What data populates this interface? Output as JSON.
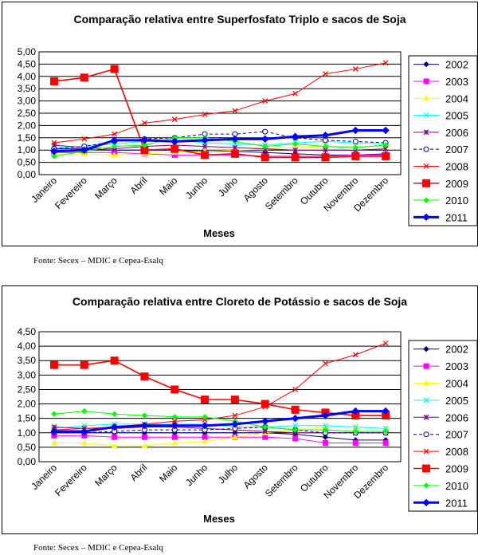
{
  "chart_data": [
    {
      "type": "line",
      "title": "Comparação relativa entre Superfosfato Triplo e sacos de Soja",
      "xlabel": "Meses",
      "ylabel": "",
      "ylim": [
        0,
        5
      ],
      "yticks": [
        "0,00",
        "0,50",
        "1,00",
        "1,50",
        "2,00",
        "2,50",
        "3,00",
        "3,50",
        "4,00",
        "4,50",
        "5,00"
      ],
      "categories": [
        "Janeiro",
        "Fevereiro",
        "Março",
        "Abril",
        "Maio",
        "Junho",
        "Julho",
        "Agosto",
        "Setembro",
        "Outubro",
        "Novembro",
        "Dezembro"
      ],
      "grid": true,
      "legend": "right",
      "series": [
        {
          "name": "2002",
          "color": "#000080",
          "marker": "diamond",
          "dash": "",
          "width": 1,
          "values": [
            1.05,
            1.05,
            1.0,
            1.0,
            1.0,
            0.95,
            0.95,
            0.9,
            0.85,
            0.8,
            0.8,
            0.85
          ]
        },
        {
          "name": "2003",
          "color": "#ff00ff",
          "marker": "square",
          "dash": "",
          "width": 1,
          "values": [
            0.9,
            0.9,
            0.9,
            0.85,
            0.8,
            0.8,
            0.8,
            0.75,
            0.75,
            0.75,
            0.8,
            0.8
          ]
        },
        {
          "name": "2004",
          "color": "#ffff00",
          "marker": "triangle",
          "dash": "",
          "width": 1,
          "values": [
            0.85,
            0.85,
            0.8,
            0.85,
            0.9,
            0.95,
            1.0,
            1.05,
            1.1,
            1.15,
            1.15,
            1.15
          ]
        },
        {
          "name": "2005",
          "color": "#00ffff",
          "marker": "x",
          "dash": "",
          "width": 1,
          "values": [
            1.1,
            1.15,
            1.25,
            1.35,
            1.4,
            1.3,
            1.25,
            1.2,
            1.3,
            1.35,
            1.3,
            1.25
          ]
        },
        {
          "name": "2006",
          "color": "#800080",
          "marker": "star",
          "dash": "",
          "width": 1,
          "values": [
            1.2,
            1.1,
            1.05,
            1.15,
            1.2,
            1.15,
            1.1,
            1.05,
            1.0,
            1.0,
            1.0,
            1.05
          ]
        },
        {
          "name": "2007",
          "color": "#000080",
          "marker": "circle",
          "dash": "4,3",
          "width": 1,
          "values": [
            1.05,
            1.15,
            1.35,
            1.45,
            1.5,
            1.65,
            1.65,
            1.75,
            1.5,
            1.4,
            1.35,
            1.3
          ]
        },
        {
          "name": "2008",
          "color": "#ff0000",
          "marker": "x",
          "dash": "",
          "width": 1,
          "values": [
            1.3,
            1.45,
            1.65,
            2.1,
            2.25,
            2.45,
            2.6,
            3.0,
            3.3,
            4.1,
            4.3,
            4.55
          ]
        },
        {
          "name": "2009",
          "color": "#ff0000",
          "marker": "square",
          "dash": "",
          "width": 1.6,
          "values": [
            3.8,
            3.95,
            4.3,
            1.0,
            1.05,
            0.8,
            0.85,
            0.7,
            0.7,
            0.7,
            0.75,
            0.75
          ]
        },
        {
          "name": "2010",
          "color": "#00ff00",
          "marker": "diamond",
          "dash": "",
          "width": 1,
          "values": [
            0.75,
            0.95,
            1.15,
            1.2,
            1.5,
            1.5,
            1.35,
            1.15,
            1.25,
            1.15,
            1.1,
            1.2
          ]
        },
        {
          "name": "2011",
          "color": "#0000ff",
          "marker": "diamond",
          "dash": "",
          "width": 3,
          "values": [
            0.95,
            1.0,
            1.4,
            1.4,
            1.35,
            1.4,
            1.45,
            1.45,
            1.55,
            1.6,
            1.8,
            1.8
          ]
        }
      ]
    },
    {
      "type": "line",
      "title": "Comparação relativa entre Cloreto de Potássio e sacos de Soja",
      "xlabel": "Meses",
      "ylabel": "",
      "ylim": [
        0,
        4.5
      ],
      "yticks": [
        "0,00",
        "0,50",
        "1,00",
        "1,50",
        "2,00",
        "2,50",
        "3,00",
        "3,50",
        "4,00",
        "4,50"
      ],
      "categories": [
        "Janeiro",
        "Fevereiro",
        "Março",
        "Abril",
        "Maio",
        "Junho",
        "Julho",
        "Agosto",
        "Setembro",
        "Outubro",
        "Novembro",
        "Dezembro"
      ],
      "grid": true,
      "legend": "right",
      "series": [
        {
          "name": "2002",
          "color": "#000080",
          "marker": "diamond",
          "dash": "",
          "width": 1,
          "values": [
            1.0,
            1.0,
            1.0,
            1.0,
            1.0,
            1.0,
            1.0,
            1.0,
            0.95,
            0.85,
            0.75,
            0.75
          ]
        },
        {
          "name": "2003",
          "color": "#ff00ff",
          "marker": "square",
          "dash": "",
          "width": 1,
          "values": [
            0.9,
            0.9,
            0.85,
            0.85,
            0.85,
            0.85,
            0.85,
            0.85,
            0.8,
            0.65,
            0.65,
            0.65
          ]
        },
        {
          "name": "2004",
          "color": "#ffff00",
          "marker": "triangle",
          "dash": "",
          "width": 1,
          "values": [
            0.65,
            0.65,
            0.55,
            0.55,
            0.65,
            0.7,
            0.85,
            1.0,
            1.1,
            1.2,
            1.2,
            1.15
          ]
        },
        {
          "name": "2005",
          "color": "#00ffff",
          "marker": "x",
          "dash": "",
          "width": 1,
          "values": [
            1.15,
            1.25,
            1.3,
            1.3,
            1.3,
            1.3,
            1.2,
            1.2,
            1.25,
            1.25,
            1.2,
            1.15
          ]
        },
        {
          "name": "2006",
          "color": "#800080",
          "marker": "star",
          "dash": "",
          "width": 1,
          "values": [
            1.2,
            1.15,
            1.15,
            1.2,
            1.2,
            1.15,
            1.1,
            1.05,
            1.0,
            1.0,
            1.0,
            1.0
          ]
        },
        {
          "name": "2007",
          "color": "#000080",
          "marker": "circle",
          "dash": "4,3",
          "width": 1,
          "values": [
            1.0,
            1.0,
            1.05,
            1.1,
            1.1,
            1.1,
            1.15,
            1.2,
            1.1,
            1.0,
            1.0,
            1.0
          ]
        },
        {
          "name": "2008",
          "color": "#ff0000",
          "marker": "x",
          "dash": "",
          "width": 1,
          "values": [
            1.1,
            1.15,
            1.2,
            1.3,
            1.4,
            1.45,
            1.6,
            1.9,
            2.5,
            3.4,
            3.7,
            4.1
          ]
        },
        {
          "name": "2009",
          "color": "#ff0000",
          "marker": "square",
          "dash": "",
          "width": 1.6,
          "values": [
            3.35,
            3.35,
            3.5,
            2.95,
            2.5,
            2.15,
            2.15,
            2.0,
            1.8,
            1.7,
            1.6,
            1.6
          ]
        },
        {
          "name": "2010",
          "color": "#00ff00",
          "marker": "diamond",
          "dash": "",
          "width": 1,
          "values": [
            1.65,
            1.75,
            1.65,
            1.6,
            1.55,
            1.55,
            1.4,
            1.2,
            1.1,
            1.1,
            1.05,
            1.05
          ]
        },
        {
          "name": "2011",
          "color": "#0000ff",
          "marker": "diamond",
          "dash": "",
          "width": 3,
          "values": [
            1.05,
            1.05,
            1.2,
            1.25,
            1.25,
            1.25,
            1.3,
            1.4,
            1.5,
            1.6,
            1.75,
            1.75
          ]
        }
      ]
    }
  ],
  "sources": [
    "Fonte: Secex – MDIC e Cepea-Esalq",
    "Fonte: Secex – MDIC e Cepea-Esalq"
  ]
}
